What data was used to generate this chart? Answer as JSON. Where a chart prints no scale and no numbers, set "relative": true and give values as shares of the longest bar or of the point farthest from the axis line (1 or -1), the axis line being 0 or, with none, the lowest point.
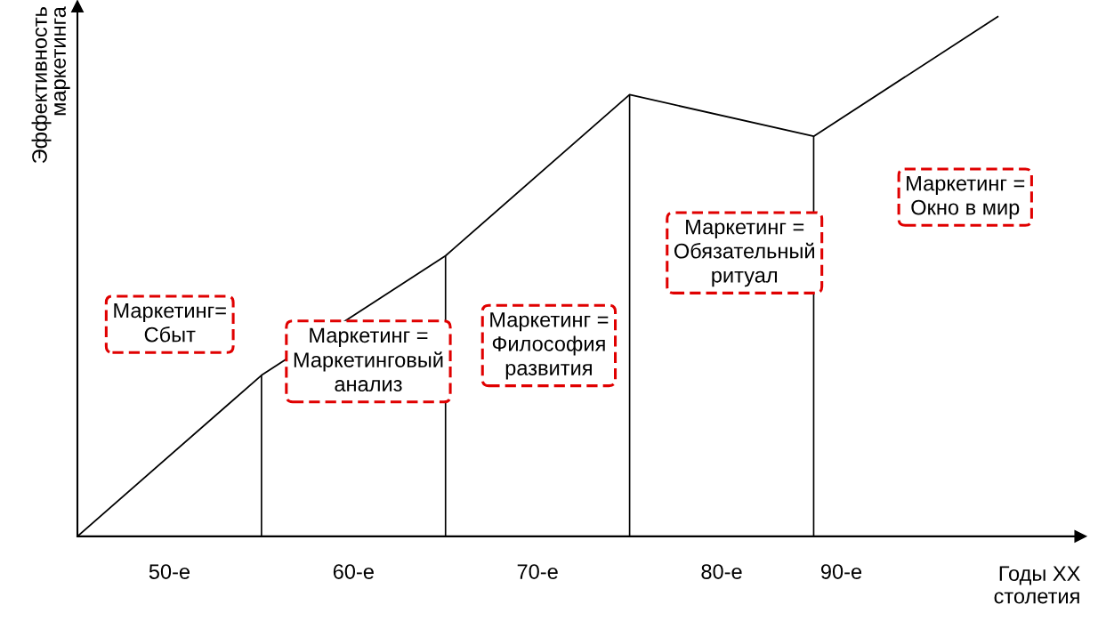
{
  "chart_data": {
    "type": "line",
    "relative": true,
    "xlabel": "Годы XX\nстолетия",
    "ylabel": "Эффективность\nмаркетинга",
    "categories": [
      null,
      null,
      null,
      null,
      null,
      null
    ],
    "series": [
      {
        "color": "#000000",
        "values": [
          0,
          0.31,
          0.54,
          0.85,
          0.77,
          1
        ]
      }
    ],
    "annotations": [
      "50-е",
      "60-е",
      "70-е",
      "80-е",
      "90-е",
      "Маркетинг=\nСбыт",
      "Маркетинг =\nМаркетинговый\nанализ",
      "Маркетинг =\nФилософия\nразвития",
      "Маркетинг =\nОбязательный\nритуал",
      "Маркетинг =\nОкно в мир"
    ],
    "grid": false,
    "legend": false
  }
}
